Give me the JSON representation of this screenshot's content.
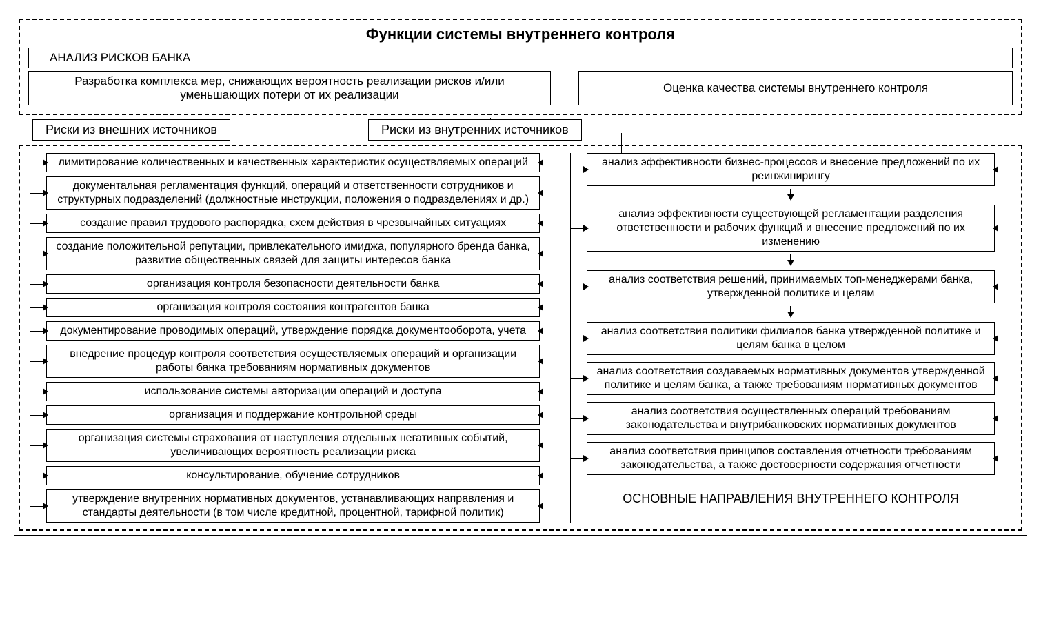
{
  "type": "flowchart",
  "colors": {
    "line": "#000000",
    "bg": "#ffffff",
    "text": "#000000"
  },
  "line_width": 1.5,
  "font_family": "Arial",
  "title": "Функции системы внутреннего контроля",
  "title_fontsize": 22,
  "body_fontsize": 17,
  "item_fontsize": 16,
  "footer_fontsize": 18,
  "header": {
    "sub1": "АНАЛИЗ РИСКОВ БАНКА",
    "left": "Разработка комплекса мер, снижающих вероятность реализации рисков и/или уменьшающих потери от их реализации",
    "right": "Оценка качества системы внутреннего контроля"
  },
  "mid": {
    "box1": "Риски из внешних источников",
    "box2": "Риски из внутренних источников"
  },
  "left_items": [
    "лимитирование количественных и качественных характеристик осуществляемых операций",
    "документальная регламентация функций, операций и ответственности сотрудников и структурных подразделений (должностные инструкции, положения о подразделениях и др.)",
    "создание правил трудового распорядка, схем действия в чрезвычайных ситуациях",
    "создание положительной репутации, привлекательного имиджа, популярного бренда банка, развитие общественных связей для защиты интересов банка",
    "организация контроля безопасности деятельности банка",
    "организация контроля состояния контрагентов банка",
    "документирование проводимых операций, утверждение порядка документооборота, учета",
    "внедрение процедур контроля соответствия осуществляемых операций и организации работы банка требованиям нормативных документов",
    "использование системы авторизации операций и доступа",
    "организация и поддержание контрольной среды",
    "организация системы страхования от наступления отдельных негативных событий, увеличивающих вероятность реализации риска",
    "консультирование, обучение сотрудников",
    "утверждение внутренних нормативных документов, устанавливающих направления и стандарты деятельности (в том числе кредитной, процентной, тарифной политик)"
  ],
  "right_items": [
    "анализ эффективности бизнес-процессов и внесение предложений по их реинжинирингу",
    "анализ эффективности существующей регламентации разделения ответственности и рабочих функций и внесение предложений по их изменению",
    "анализ соответствия решений, принимаемых топ-менеджерами банка, утвержденной политике и целям",
    "анализ соответствия политики филиалов банка утвержденной политике и целям банка в целом",
    "анализ соответствия создаваемых нормативных документов утвержденной политике и целям банка, а также требованиям нормативных документов",
    "анализ соответствия осуществленных операций требованиям законодательства и внутрибанковских нормативных документов",
    "анализ соответствия принципов составления отчетности требованиям законодательства, а также достоверности содержания отчетности"
  ],
  "right_down_after": [
    0,
    1,
    2
  ],
  "footer": "ОСНОВНЫЕ НАПРАВЛЕНИЯ ВНУТРЕННЕГО КОНТРОЛЯ"
}
